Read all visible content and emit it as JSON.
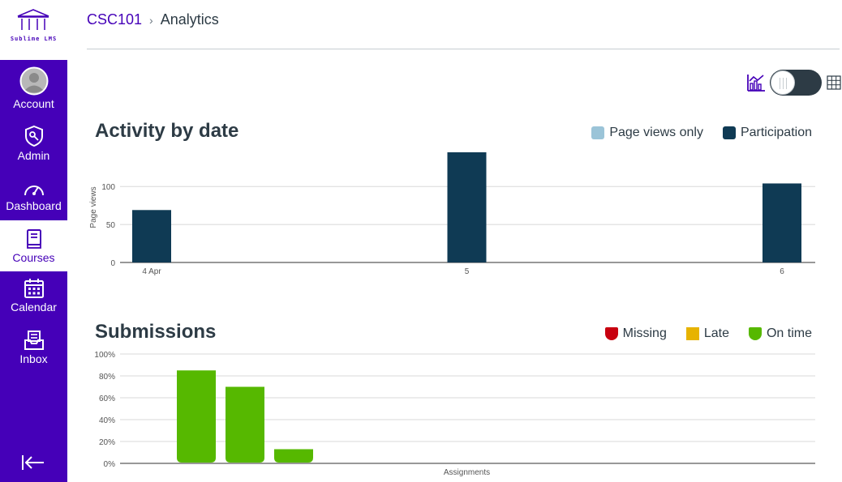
{
  "sidebar": {
    "logo_text": "Sublime LMS",
    "items": [
      {
        "id": "account",
        "label": "Account",
        "active": false
      },
      {
        "id": "admin",
        "label": "Admin",
        "active": false
      },
      {
        "id": "dashboard",
        "label": "Dashboard",
        "active": false
      },
      {
        "id": "courses",
        "label": "Courses",
        "active": true
      },
      {
        "id": "calendar",
        "label": "Calendar",
        "active": false
      },
      {
        "id": "inbox",
        "label": "Inbox",
        "active": false
      }
    ],
    "collapse_icon": "collapse-arrow-icon"
  },
  "breadcrumb": {
    "course": "CSC101",
    "separator": "›",
    "current": "Analytics"
  },
  "view_toggle": {
    "left_icon": "graph-icon",
    "right_icon": "table-icon",
    "state": "graph"
  },
  "colors": {
    "brand": "#4500b8",
    "page_views": "#9bc4d8",
    "participation": "#0f3a54",
    "missing": "#c8000f",
    "late": "#e7b300",
    "on_time": "#56b800"
  },
  "activity": {
    "title": "Activity by date",
    "legend": [
      {
        "label": "Page views only",
        "color": "#9bc4d8"
      },
      {
        "label": "Participation",
        "color": "#0f3a54"
      }
    ]
  },
  "submissions": {
    "title": "Submissions",
    "legend": [
      {
        "label": "Missing",
        "color": "#c8000f"
      },
      {
        "label": "Late",
        "color": "#e7b300"
      },
      {
        "label": "On time",
        "color": "#56b800"
      }
    ]
  },
  "chart_data": [
    {
      "type": "bar",
      "title": "Activity by date",
      "xlabel": "",
      "ylabel": "Page views",
      "categories": [
        "4 Apr",
        "5",
        "6"
      ],
      "series": [
        {
          "name": "Participation",
          "values": [
            69,
            145,
            104
          ]
        }
      ],
      "yticks": [
        0,
        50,
        100
      ],
      "ylim": [
        0,
        145
      ],
      "grid": true,
      "legend_position": "top-right"
    },
    {
      "type": "bar",
      "title": "Submissions",
      "xlabel": "Assignments",
      "ylabel": "",
      "categories": [
        "",
        "",
        ""
      ],
      "series": [
        {
          "name": "On time",
          "values": [
            85,
            70,
            13
          ]
        }
      ],
      "yticks": [
        "0%",
        "20%",
        "40%",
        "60%",
        "80%",
        "100%"
      ],
      "ylim": [
        0,
        100
      ],
      "grid": true,
      "legend_position": "top-right"
    }
  ]
}
